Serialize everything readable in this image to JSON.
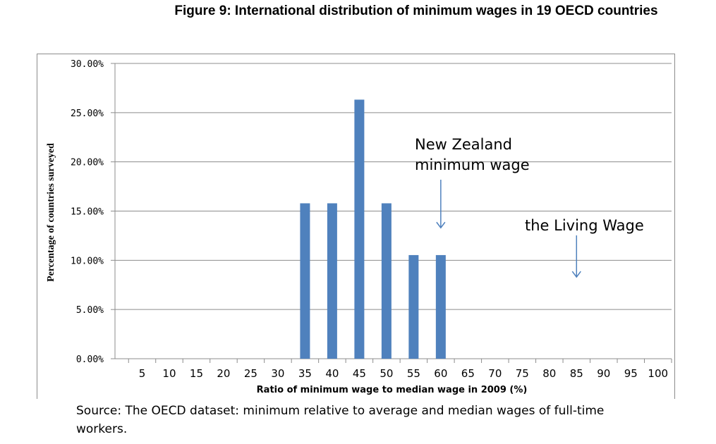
{
  "title": "Figure 9: International distribution of minimum wages in 19 OECD countries",
  "source": "Source: The OECD dataset: minimum relative to average and median wages of full-time workers.",
  "chart_data": {
    "type": "bar",
    "categories": [
      "5",
      "10",
      "15",
      "20",
      "25",
      "30",
      "35",
      "40",
      "45",
      "50",
      "55",
      "60",
      "65",
      "70",
      "75",
      "80",
      "85",
      "90",
      "95",
      "100"
    ],
    "values": [
      0,
      0,
      0,
      0,
      0,
      0,
      15.79,
      15.79,
      26.32,
      15.79,
      10.53,
      10.53,
      0,
      0,
      0,
      0,
      0,
      0,
      0,
      0
    ],
    "xlabel": "Ratio of minimum wage to median wage in 2009 (%)",
    "ylabel": "Percentage of countries surveyed",
    "ylim": [
      0,
      30
    ],
    "yticks": [
      "0.00%",
      "5.00%",
      "10.00%",
      "15.00%",
      "20.00%",
      "25.00%",
      "30.00%"
    ],
    "grid": true,
    "bar_color": "#4f81bd",
    "annotations": [
      {
        "text_lines": [
          "New Zealand",
          "minimum wage"
        ],
        "x_category": "60",
        "arrow_to_value": 13.3
      },
      {
        "text_lines": [
          "the Living Wage"
        ],
        "x_category": "85",
        "arrow_to_value": 8.3
      }
    ]
  }
}
